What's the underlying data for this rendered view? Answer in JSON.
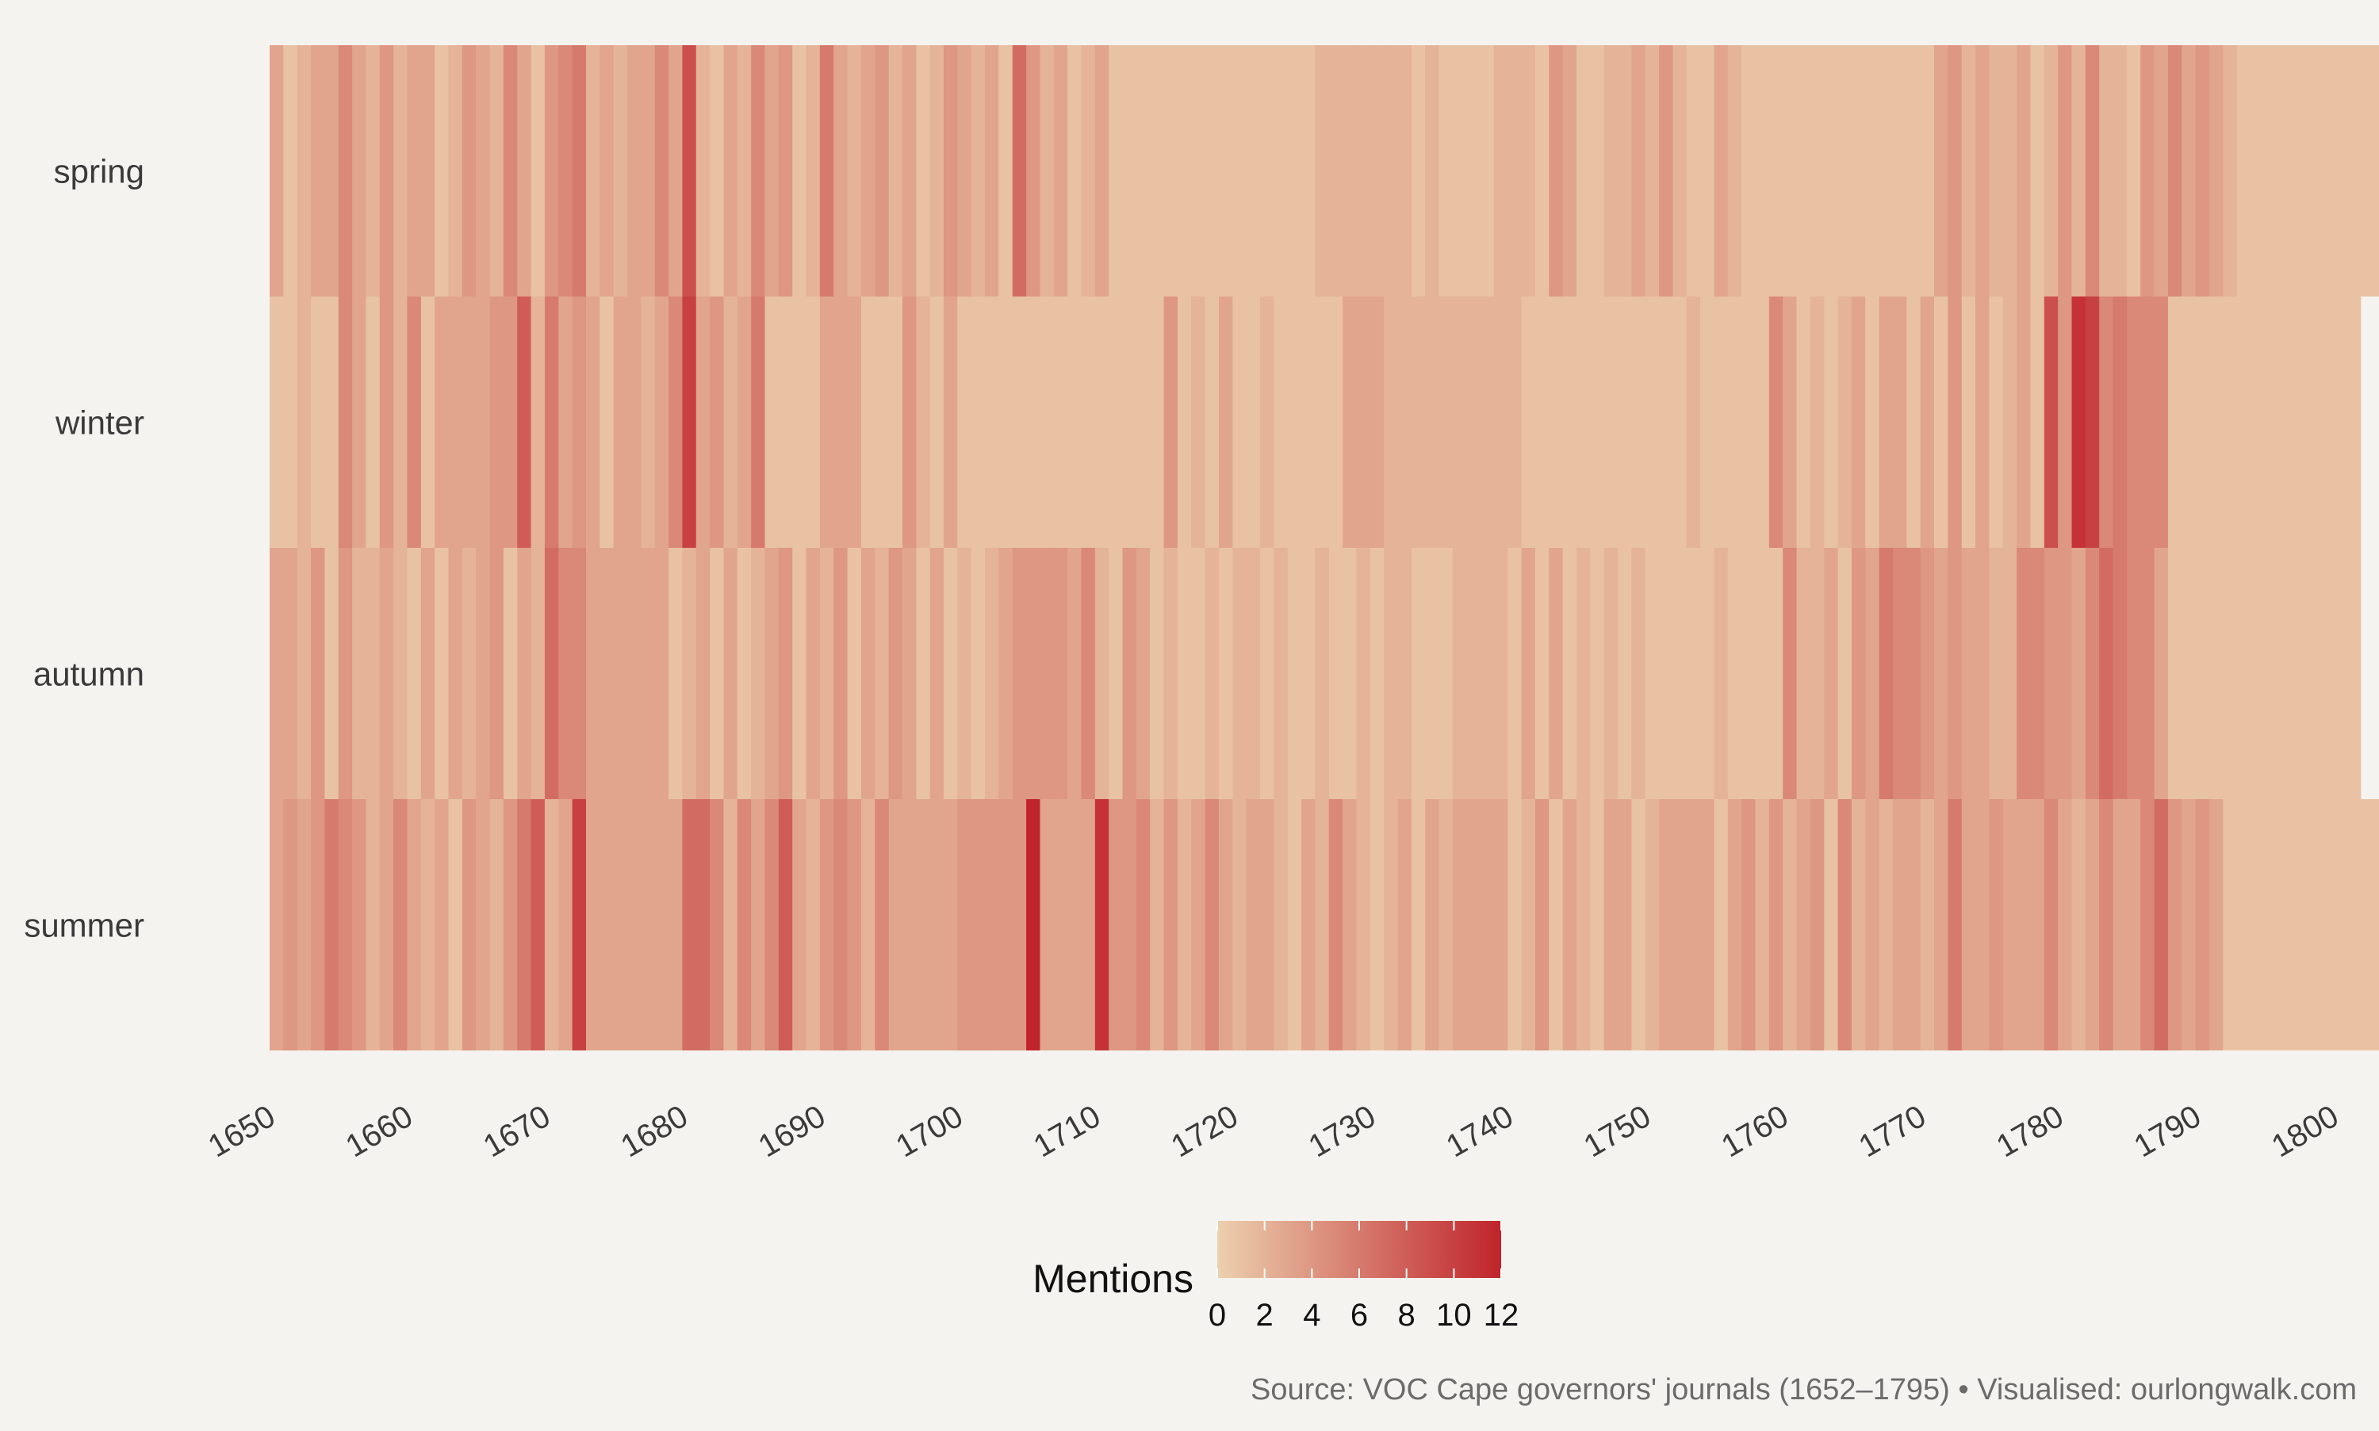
{
  "chart_data": {
    "type": "heatmap",
    "title": "",
    "xlabel": "",
    "ylabel": "",
    "rows": [
      "spring",
      "winter",
      "autumn",
      "summer"
    ],
    "x_start": 1652,
    "x_end": 1795,
    "xlim": [
      1650,
      1800
    ],
    "x_ticks": [
      "1650",
      "1660",
      "1670",
      "1680",
      "1690",
      "1700",
      "1710",
      "1720",
      "1730",
      "1740",
      "1750",
      "1760",
      "1770",
      "1780",
      "1790",
      "1800"
    ],
    "series": [
      {
        "name": "spring",
        "values": [
          3,
          1,
          2,
          3,
          3,
          5,
          3,
          2,
          4,
          2,
          3,
          3,
          1,
          2,
          4,
          3,
          2,
          5,
          3,
          1,
          4,
          5,
          6,
          2,
          3,
          2,
          3,
          3,
          5,
          3,
          9,
          2,
          1,
          3,
          2,
          5,
          3,
          4,
          1,
          2,
          6,
          3,
          2,
          3,
          4,
          2,
          3,
          1,
          2,
          4,
          3,
          2,
          3,
          1,
          7,
          4,
          2,
          3,
          1,
          2,
          3,
          1,
          1,
          1,
          1,
          1,
          1,
          1,
          1,
          1,
          1,
          1,
          1,
          1,
          1,
          1,
          2,
          2,
          2,
          2,
          2,
          2,
          2,
          1,
          2,
          1,
          1,
          1,
          1,
          2,
          2,
          2,
          1,
          4,
          3,
          1,
          1,
          2,
          2,
          3,
          2,
          4,
          2,
          1,
          1,
          3,
          2,
          1,
          1,
          1,
          1,
          1,
          1,
          1,
          1,
          1,
          1,
          1,
          1,
          1,
          1,
          3,
          4,
          2,
          3,
          2,
          2,
          3,
          1,
          2,
          4,
          2,
          5,
          2,
          2,
          1,
          4,
          3,
          5,
          3,
          4,
          3,
          2,
          1,
          1,
          1,
          1,
          1,
          1,
          1,
          1,
          1,
          1,
          1,
          1,
          1,
          1,
          1
        ]
      },
      {
        "name": "winter",
        "values": [
          1,
          1,
          2,
          1,
          1,
          5,
          3,
          1,
          4,
          2,
          5,
          1,
          3,
          3,
          3,
          3,
          4,
          4,
          8,
          2,
          6,
          3,
          4,
          3,
          1,
          3,
          3,
          2,
          3,
          5,
          10,
          3,
          4,
          2,
          3,
          6,
          1,
          1,
          1,
          1,
          3,
          3,
          3,
          1,
          1,
          1,
          4,
          2,
          1,
          3,
          1,
          1,
          1,
          1,
          1,
          1,
          1,
          1,
          1,
          1,
          1,
          1,
          1,
          1,
          1,
          4,
          1,
          2,
          1,
          3,
          1,
          1,
          2,
          1,
          1,
          1,
          1,
          1,
          3,
          3,
          3,
          2,
          2,
          2,
          2,
          2,
          2,
          2,
          2,
          2,
          2,
          1,
          1,
          1,
          1,
          1,
          1,
          1,
          1,
          1,
          1,
          1,
          1,
          2,
          1,
          1,
          1,
          1,
          1,
          5,
          3,
          1,
          2,
          1,
          2,
          3,
          1,
          3,
          3,
          1,
          3,
          1,
          4,
          1,
          3,
          1,
          2,
          3,
          1,
          9,
          4,
          11,
          10,
          5,
          6,
          5,
          5,
          5,
          1,
          1,
          1,
          1,
          1,
          1,
          1,
          1,
          1,
          1,
          1,
          1,
          1,
          1
        ]
      },
      {
        "name": "autumn",
        "values": [
          3,
          3,
          2,
          4,
          1,
          4,
          2,
          2,
          3,
          2,
          1,
          3,
          1,
          3,
          2,
          3,
          4,
          1,
          3,
          2,
          7,
          5,
          5,
          3,
          3,
          3,
          3,
          3,
          3,
          1,
          2,
          3,
          1,
          3,
          1,
          2,
          3,
          4,
          1,
          3,
          2,
          4,
          1,
          3,
          2,
          4,
          3,
          1,
          3,
          1,
          2,
          1,
          2,
          3,
          4,
          4,
          4,
          4,
          3,
          5,
          2,
          1,
          4,
          3,
          1,
          2,
          1,
          1,
          2,
          1,
          2,
          2,
          1,
          2,
          1,
          1,
          2,
          1,
          1,
          2,
          1,
          2,
          2,
          1,
          1,
          1,
          2,
          2,
          2,
          2,
          1,
          3,
          1,
          3,
          1,
          2,
          1,
          2,
          1,
          2,
          1,
          1,
          1,
          1,
          1,
          2,
          1,
          1,
          1,
          1,
          5,
          2,
          2,
          3,
          1,
          4,
          3,
          6,
          5,
          5,
          4,
          3,
          4,
          3,
          3,
          2,
          2,
          5,
          5,
          4,
          4,
          3,
          5,
          7,
          6,
          5,
          5,
          3,
          1,
          1,
          1,
          1,
          1,
          1,
          1,
          1,
          1,
          1,
          1,
          1,
          1,
          1
        ]
      },
      {
        "name": "summer",
        "values": [
          3,
          4,
          3,
          4,
          6,
          5,
          4,
          2,
          3,
          5,
          3,
          2,
          3,
          1,
          4,
          3,
          2,
          4,
          6,
          8,
          2,
          3,
          10,
          3,
          3,
          3,
          3,
          3,
          3,
          3,
          7,
          7,
          5,
          2,
          5,
          3,
          5,
          8,
          3,
          2,
          4,
          5,
          4,
          2,
          5,
          3,
          3,
          3,
          3,
          3,
          4,
          4,
          4,
          4,
          4,
          12,
          3,
          3,
          3,
          3,
          11,
          4,
          4,
          5,
          2,
          4,
          2,
          3,
          5,
          3,
          2,
          3,
          3,
          2,
          1,
          3,
          2,
          5,
          3,
          2,
          1,
          2,
          3,
          1,
          3,
          2,
          3,
          3,
          3,
          3,
          1,
          2,
          4,
          1,
          3,
          2,
          1,
          3,
          3,
          1,
          2,
          3,
          3,
          3,
          3,
          1,
          3,
          4,
          2,
          4,
          2,
          3,
          4,
          1,
          5,
          2,
          3,
          2,
          3,
          3,
          2,
          3,
          6,
          3,
          3,
          4,
          3,
          3,
          3,
          5,
          3,
          2,
          3,
          5,
          3,
          3,
          5,
          7,
          4,
          3,
          4,
          3,
          1,
          1,
          1,
          1,
          1,
          1,
          1,
          1,
          1,
          1,
          1,
          1,
          1,
          1
        ]
      }
    ],
    "legend": {
      "title": "Mentions",
      "placement": "bottom-center",
      "min": 0,
      "max": 12,
      "ticks": [
        "0",
        "2",
        "4",
        "6",
        "8",
        "10",
        "12"
      ],
      "color_low": "#ecd0ae",
      "color_high": "#c0242a"
    }
  },
  "caption": "Source: VOC Cape governors' journals (1652–1795) • Visualised: ourlongwalk.com",
  "colors": {
    "background": "#f5f3ef",
    "tile_empty": "#ecceac",
    "axis_text": "#3a3a3a",
    "caption_text": "#6b6b6b"
  }
}
